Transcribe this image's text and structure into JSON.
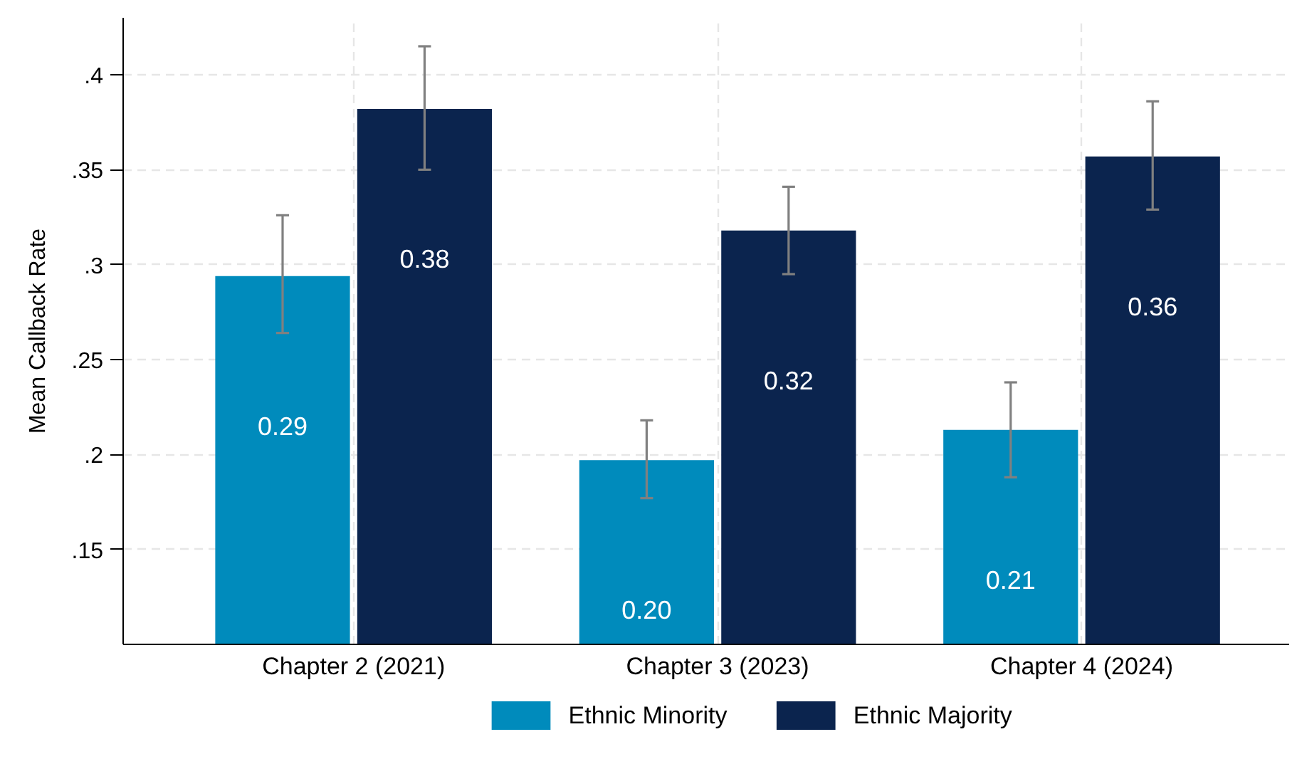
{
  "chart_data": {
    "type": "bar",
    "ylabel": "Mean Callback Rate",
    "categories": [
      "Chapter 2 (2021)",
      "Chapter 3 (2023)",
      "Chapter 4 (2024)"
    ],
    "series": [
      {
        "name": "Ethnic Minority",
        "color": "#008bbc",
        "values": [
          0.294,
          0.197,
          0.213
        ],
        "errors": [
          [
            0.264,
            0.326
          ],
          [
            0.177,
            0.218
          ],
          [
            0.188,
            0.238
          ]
        ],
        "value_labels": [
          "0.29",
          "0.20",
          "0.21"
        ]
      },
      {
        "name": "Ethnic Majority",
        "color": "#0b244e",
        "values": [
          0.382,
          0.318,
          0.357
        ],
        "errors": [
          [
            0.35,
            0.415
          ],
          [
            0.295,
            0.341
          ],
          [
            0.329,
            0.386
          ]
        ],
        "value_labels": [
          "0.38",
          "0.32",
          "0.36"
        ]
      }
    ],
    "ylim": [
      0.1,
      0.43
    ],
    "yticks": [
      {
        "value": 0.15,
        "label": ".15"
      },
      {
        "value": 0.2,
        "label": ".2"
      },
      {
        "value": 0.25,
        "label": ".25"
      },
      {
        "value": 0.3,
        "label": ".3"
      },
      {
        "value": 0.35,
        "label": ".35"
      },
      {
        "value": 0.4,
        "label": ".4"
      }
    ],
    "grid": true,
    "legend": "bottom"
  }
}
